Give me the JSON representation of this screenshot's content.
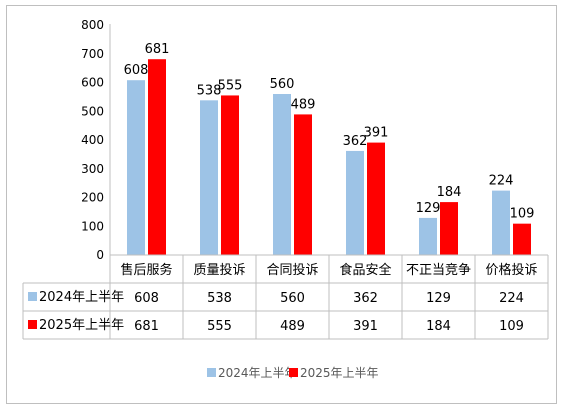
{
  "chart_data": {
    "type": "bar",
    "categories": [
      "售后服务",
      "质量投诉",
      "合同投诉",
      "食品安全",
      "不正当竞争",
      "价格投诉"
    ],
    "series": [
      {
        "name": "2024年上半年",
        "values": [
          608,
          538,
          560,
          362,
          129,
          224
        ],
        "color": "#9dc3e6"
      },
      {
        "name": "2025年上半年",
        "values": [
          681,
          555,
          489,
          391,
          184,
          109
        ],
        "color": "#ff0000"
      }
    ],
    "yticks": [
      0,
      100,
      200,
      300,
      400,
      500,
      600,
      700,
      800
    ],
    "ylim": [
      0,
      800
    ],
    "grid": false,
    "legend": "bottom",
    "data_table": true
  }
}
